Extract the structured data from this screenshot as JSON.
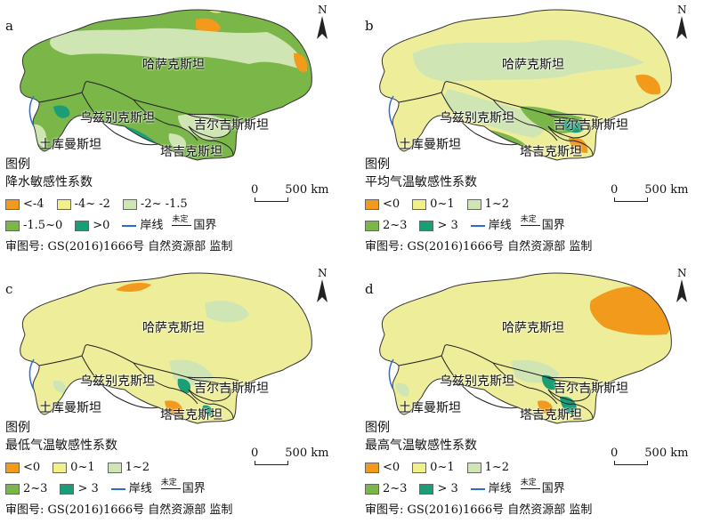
{
  "countries": {
    "kazakhstan": "哈萨克斯坦",
    "uzbekistan": "乌兹别克斯坦",
    "kyrgyzstan": "吉尔吉斯斯坦",
    "turkmenistan": "土库曼斯坦",
    "tajikistan": "塔吉克斯坦"
  },
  "common": {
    "legend_heading": "图例",
    "north_label": "N",
    "scale_zero": "0",
    "scale_length": "500 km",
    "coastline_label": "岸线",
    "undetermined_label": "未定",
    "border_label": "国界",
    "approval": "审图号: GS(2016)1666号  自然资源部 监制"
  },
  "panels": [
    {
      "id": "a",
      "label": "a",
      "legend_title": "降水敏感性系数",
      "base_color": "#7ab648",
      "items": [
        {
          "label": "<-4",
          "color": "#f29a1c"
        },
        {
          "label": "-4~ -2",
          "color": "#f3f08a"
        },
        {
          "label": "-2~ -1.5",
          "color": "#cfe6b4"
        },
        {
          "label": "-1.5~0",
          "color": "#7ab648"
        },
        {
          "label": ">0",
          "color": "#1b9e77"
        }
      ]
    },
    {
      "id": "b",
      "label": "b",
      "legend_title": "平均气温敏感性系数",
      "base_color": "#eeee9a",
      "items": [
        {
          "label": "<0",
          "color": "#f29a1c"
        },
        {
          "label": "0~1",
          "color": "#f3f08a"
        },
        {
          "label": "1~2",
          "color": "#cfe6b4"
        },
        {
          "label": "2~3",
          "color": "#7ab648"
        },
        {
          "label": "> 3",
          "color": "#1b9e77"
        }
      ]
    },
    {
      "id": "c",
      "label": "c",
      "legend_title": "最低气温敏感性系数",
      "base_color": "#eeee9a",
      "items": [
        {
          "label": "<0",
          "color": "#f29a1c"
        },
        {
          "label": "0~1",
          "color": "#f3f08a"
        },
        {
          "label": "1~2",
          "color": "#cfe6b4"
        },
        {
          "label": "2~3",
          "color": "#7ab648"
        },
        {
          "label": "> 3",
          "color": "#1b9e77"
        }
      ]
    },
    {
      "id": "d",
      "label": "d",
      "legend_title": "最高气温敏感性系数",
      "base_color": "#eeee9a",
      "items": [
        {
          "label": "<0",
          "color": "#f29a1c"
        },
        {
          "label": "0~1",
          "color": "#f3f08a"
        },
        {
          "label": "1~2",
          "color": "#cfe6b4"
        },
        {
          "label": "2~3",
          "color": "#7ab648"
        },
        {
          "label": "> 3",
          "color": "#1b9e77"
        }
      ]
    }
  ]
}
